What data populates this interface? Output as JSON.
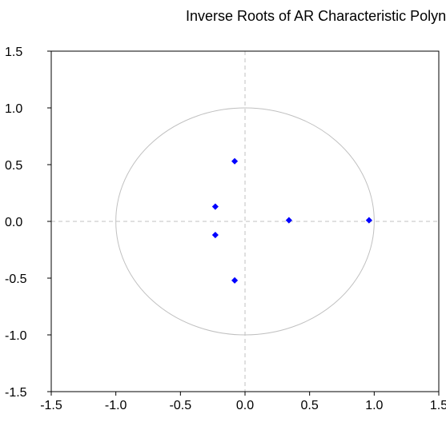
{
  "chart_data": {
    "type": "scatter",
    "title": "Inverse Roots of AR Characteristic Polynomial",
    "xlabel": "",
    "ylabel": "",
    "xlim": [
      -1.5,
      1.5
    ],
    "ylim": [
      -1.5,
      1.5
    ],
    "x_ticks": [
      "-1.5",
      "-1.0",
      "-0.5",
      "0.0",
      "0.5",
      "1.0",
      "1.5"
    ],
    "y_ticks": [
      "1.5",
      "1.0",
      "0.5",
      "0.0",
      "-0.5",
      "-1.0",
      "-1.5"
    ],
    "unit_circle": true,
    "grid": false,
    "reference_lines": [
      0,
      0
    ],
    "points": [
      {
        "x": -0.08,
        "y": 0.53
      },
      {
        "x": -0.23,
        "y": 0.13
      },
      {
        "x": -0.23,
        "y": -0.12
      },
      {
        "x": -0.08,
        "y": -0.52
      },
      {
        "x": 0.34,
        "y": 0.01
      },
      {
        "x": 0.96,
        "y": 0.01
      }
    ],
    "colors": {
      "points": "#0000ff",
      "circle": "#c0c0c0",
      "zero_lines": "#c0c0c0",
      "frame": "#000000"
    }
  }
}
